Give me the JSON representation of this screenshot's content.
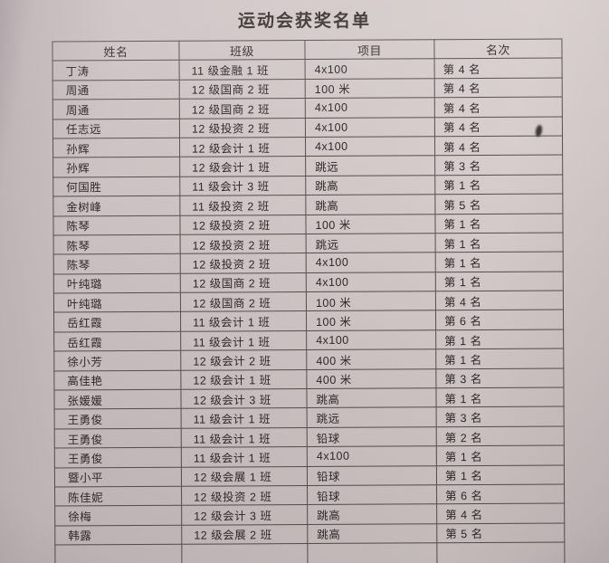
{
  "photo": {
    "title": "运动会获奖名单"
  },
  "table": {
    "headers": [
      "姓名",
      "班级",
      "项目",
      "名次"
    ],
    "rows": [
      [
        "丁涛",
        "11 级金融 1 班",
        "4x100",
        "第 4 名"
      ],
      [
        "周通",
        "12 级国商 2 班",
        "100 米",
        "第 4 名"
      ],
      [
        "周通",
        "12 级国商 2 班",
        "4x100",
        "第 4 名"
      ],
      [
        "任志远",
        "12 级投资 2 班",
        "4x100",
        "第 4 名"
      ],
      [
        "孙辉",
        "12 级会计 1 班",
        "4x100",
        "第 4 名"
      ],
      [
        "孙辉",
        "12 级会计 1 班",
        "跳远",
        "第 3 名"
      ],
      [
        "何国胜",
        "11 级会计 3 班",
        "跳高",
        "第 1 名"
      ],
      [
        "金树峰",
        "11 级投资 2 班",
        "跳高",
        "第 5 名"
      ],
      [
        "陈琴",
        "12 级投资 2 班",
        "100 米",
        "第 1 名"
      ],
      [
        "陈琴",
        "12 级投资 2 班",
        "跳远",
        "第 1 名"
      ],
      [
        "陈琴",
        "12 级投资 2 班",
        "4x100",
        "第 1 名"
      ],
      [
        "叶纯璐",
        "12 级国商 2 班",
        "4x100",
        "第 1 名"
      ],
      [
        "叶纯璐",
        "12 级国商 2 班",
        "100 米",
        "第 4 名"
      ],
      [
        "岳红霞",
        "11 级会计 1 班",
        "100 米",
        "第 6 名"
      ],
      [
        "岳红霞",
        "11 级会计 1 班",
        "4x100",
        "第 1 名"
      ],
      [
        "徐小芳",
        "12 级会计 2 班",
        "400 米",
        "第 1 名"
      ],
      [
        "高佳艳",
        "12 级会计 1 班",
        "400 米",
        "第 3 名"
      ],
      [
        "张媛媛",
        "12 级会计 3 班",
        "跳高",
        "第 1 名"
      ],
      [
        "王勇俊",
        "11 级会计 1 班",
        "跳远",
        "第 3 名"
      ],
      [
        "王勇俊",
        "11 级会计 1 班",
        "铅球",
        "第 2 名"
      ],
      [
        "王勇俊",
        "11 级会计 1 班",
        "4x100",
        "第 1 名"
      ],
      [
        "暨小平",
        "12 级会展 1 班",
        "铅球",
        "第 1 名"
      ],
      [
        "陈佳妮",
        "12 级投资 2 班",
        "铅球",
        "第 6 名"
      ],
      [
        "徐梅",
        "12 级会计 3 班",
        "跳高",
        "第 4 名"
      ],
      [
        "韩露",
        "12 级会展 2 班",
        "跳高",
        "第 5 名"
      ]
    ]
  },
  "colors": {
    "paper": "#cfc5c6",
    "ink": "#2e282a",
    "grid_line": "#57504e"
  }
}
